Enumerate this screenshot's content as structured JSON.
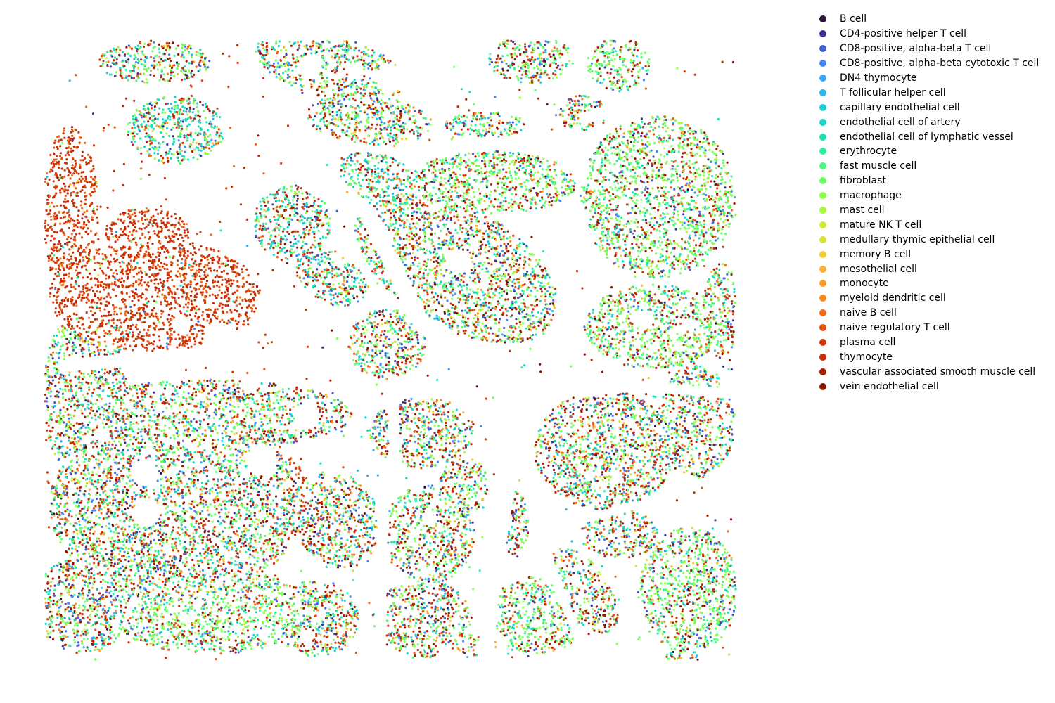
{
  "chart_data": {
    "type": "scatter",
    "title": "",
    "xlabel": "",
    "ylabel": "",
    "axes_visible": false,
    "grid": false,
    "legend_position": "right",
    "xlim": [
      0,
      1
    ],
    "ylim": [
      0,
      1
    ],
    "series": [
      {
        "name": "B cell",
        "color": "#30123b",
        "weight": 1
      },
      {
        "name": "CD4-positive helper T cell",
        "color": "#3e3994",
        "weight": 3
      },
      {
        "name": "CD8-positive, alpha-beta T cell",
        "color": "#4660d6",
        "weight": 3
      },
      {
        "name": "CD8-positive, alpha-beta cytotoxic T cell",
        "color": "#4686fb",
        "weight": 3
      },
      {
        "name": "DN4 thymocyte",
        "color": "#3aa6f6",
        "weight": 1
      },
      {
        "name": "T follicular helper cell",
        "color": "#2cbae9",
        "weight": 1
      },
      {
        "name": "capillary endothelial cell",
        "color": "#1bcfd4",
        "weight": 2
      },
      {
        "name": "endothelial cell of artery",
        "color": "#18d6cb",
        "weight": 3
      },
      {
        "name": "endothelial cell of lymphatic vessel",
        "color": "#1ae4b6",
        "weight": 3
      },
      {
        "name": "erythrocyte",
        "color": "#2ef19f",
        "weight": 2
      },
      {
        "name": "fast muscle cell",
        "color": "#4df882",
        "weight": 2
      },
      {
        "name": "fibroblast",
        "color": "#6cfe63",
        "weight": 8
      },
      {
        "name": "macrophage",
        "color": "#8cff4a",
        "weight": 6
      },
      {
        "name": "mast cell",
        "color": "#a4fc3c",
        "weight": 1
      },
      {
        "name": "mature NK T cell",
        "color": "#c5ef33",
        "weight": 1
      },
      {
        "name": "medullary thymic epithelial cell",
        "color": "#dde037",
        "weight": 1
      },
      {
        "name": "memory B cell",
        "color": "#f0cc3a",
        "weight": 1
      },
      {
        "name": "mesothelial cell",
        "color": "#fcb036",
        "weight": 1
      },
      {
        "name": "monocyte",
        "color": "#fe9b2d",
        "weight": 1
      },
      {
        "name": "myeloid dendritic cell",
        "color": "#f98a1e",
        "weight": 1
      },
      {
        "name": "naive B cell",
        "color": "#f06e1a",
        "weight": 2
      },
      {
        "name": "naive regulatory T cell",
        "color": "#e1520f",
        "weight": 3
      },
      {
        "name": "plasma cell",
        "color": "#d23a09",
        "weight": 2
      },
      {
        "name": "thymocyte",
        "color": "#c72e05",
        "weight": 9
      },
      {
        "name": "vascular associated smooth muscle cell",
        "color": "#a11c02",
        "weight": 5
      },
      {
        "name": "vein endothelial cell",
        "color": "#8d1601",
        "weight": 3
      }
    ]
  }
}
